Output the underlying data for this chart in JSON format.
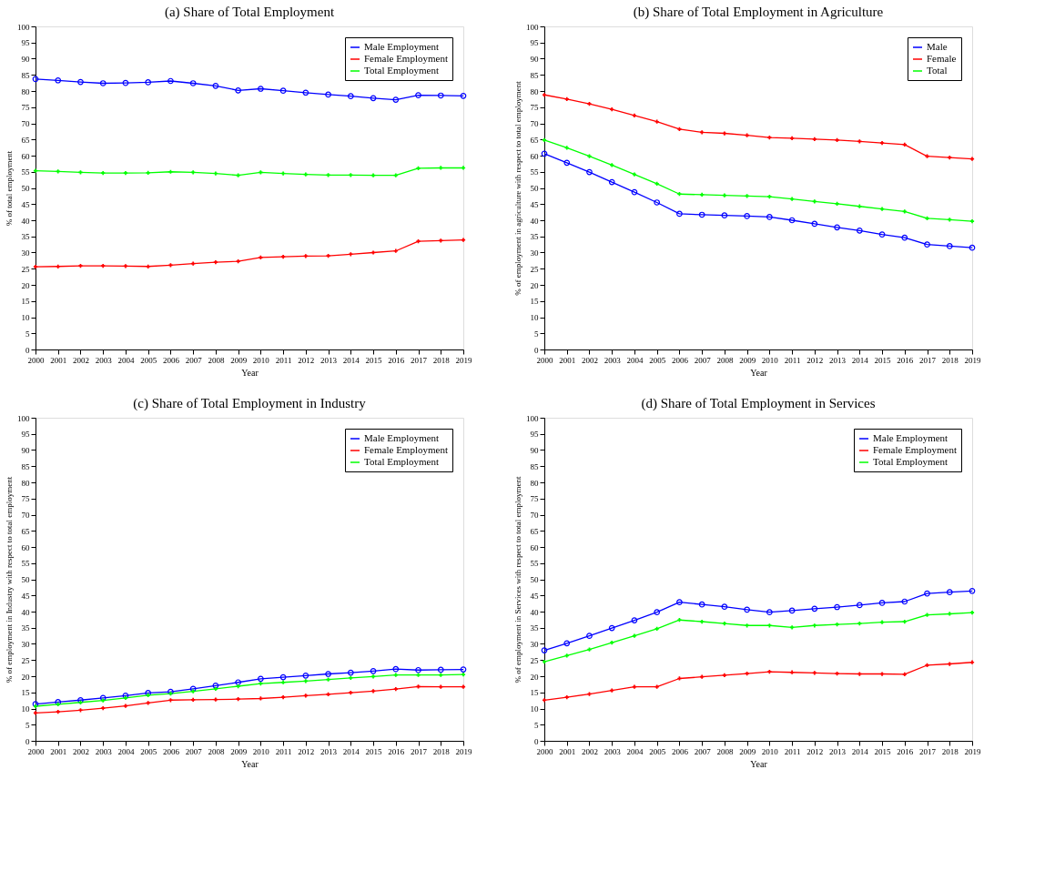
{
  "chart_data": [
    {
      "type": "line",
      "title": "(a) Share of Total Employment",
      "xlabel": "Year",
      "ylabel": "% of total employment",
      "x": [
        2000,
        2001,
        2002,
        2003,
        2004,
        2005,
        2006,
        2007,
        2008,
        2009,
        2010,
        2011,
        2012,
        2013,
        2014,
        2015,
        2016,
        2017,
        2018,
        2019
      ],
      "xlim": [
        2000,
        2019
      ],
      "xticks": [
        2000,
        2001,
        2002,
        2003,
        2004,
        2005,
        2006,
        2007,
        2008,
        2009,
        2010,
        2011,
        2012,
        2013,
        2014,
        2015,
        2016,
        2017,
        2018,
        2019
      ],
      "ylim": [
        0,
        100
      ],
      "yticks": [
        0,
        5,
        10,
        15,
        20,
        25,
        30,
        35,
        40,
        45,
        50,
        55,
        60,
        65,
        70,
        75,
        80,
        85,
        90,
        95,
        100
      ],
      "grid": false,
      "legend": "top right",
      "line_style": "solid",
      "series": [
        {
          "name": "Male Employment",
          "color": "#0000ff",
          "marker": "circle",
          "values": [
            83.7,
            83.3,
            82.8,
            82.4,
            82.5,
            82.7,
            83.1,
            82.4,
            81.6,
            80.2,
            80.7,
            80.1,
            79.5,
            78.9,
            78.4,
            77.8,
            77.3,
            78.7,
            78.6,
            78.5
          ]
        },
        {
          "name": "Female Employment",
          "color": "#ff0000",
          "marker": "cross",
          "values": [
            25.6,
            25.7,
            25.9,
            25.9,
            25.8,
            25.7,
            26.1,
            26.6,
            27.0,
            27.3,
            28.5,
            28.7,
            28.9,
            29.0,
            29.5,
            30.0,
            30.5,
            33.5,
            33.7,
            33.9
          ]
        },
        {
          "name": "Total Employment",
          "color": "#00ff00",
          "marker": "cross",
          "values": [
            55.3,
            55.1,
            54.8,
            54.6,
            54.6,
            54.7,
            55.0,
            54.8,
            54.5,
            53.9,
            54.8,
            54.5,
            54.2,
            54.0,
            54.0,
            53.9,
            53.9,
            56.1,
            56.2,
            56.2
          ]
        }
      ]
    },
    {
      "type": "line",
      "title": "(b) Share of Total Employment in Agriculture",
      "xlabel": "Year",
      "ylabel": "% of employment in agriculture with respect to total employment",
      "x": [
        2000,
        2001,
        2002,
        2003,
        2004,
        2005,
        2006,
        2007,
        2008,
        2009,
        2010,
        2011,
        2012,
        2013,
        2014,
        2015,
        2016,
        2017,
        2018,
        2019
      ],
      "xlim": [
        2000,
        2019
      ],
      "xticks": [
        2000,
        2001,
        2002,
        2003,
        2004,
        2005,
        2006,
        2007,
        2008,
        2009,
        2010,
        2011,
        2012,
        2013,
        2014,
        2015,
        2016,
        2017,
        2018,
        2019
      ],
      "ylim": [
        0,
        100
      ],
      "yticks": [
        0,
        5,
        10,
        15,
        20,
        25,
        30,
        35,
        40,
        45,
        50,
        55,
        60,
        65,
        70,
        75,
        80,
        85,
        90,
        95,
        100
      ],
      "grid": false,
      "legend": "top right",
      "line_style": "solid",
      "series": [
        {
          "name": "Male",
          "color": "#0000ff",
          "marker": "circle",
          "values": [
            60.6,
            57.8,
            54.9,
            51.8,
            48.7,
            45.5,
            42.0,
            41.7,
            41.5,
            41.3,
            41.0,
            40.0,
            38.9,
            37.8,
            36.8,
            35.6,
            34.6,
            32.5,
            32.0,
            31.5
          ]
        },
        {
          "name": "Female",
          "color": "#ff0000",
          "marker": "cross",
          "values": [
            78.8,
            77.5,
            76.0,
            74.3,
            72.4,
            70.5,
            68.2,
            67.2,
            66.9,
            66.3,
            65.6,
            65.4,
            65.1,
            64.8,
            64.4,
            63.9,
            63.4,
            59.8,
            59.4,
            59.0
          ]
        },
        {
          "name": "Total",
          "color": "#00ff00",
          "marker": "cross",
          "values": [
            64.8,
            62.4,
            59.8,
            57.1,
            54.2,
            51.3,
            48.1,
            47.9,
            47.7,
            47.5,
            47.3,
            46.6,
            45.8,
            45.1,
            44.3,
            43.5,
            42.7,
            40.6,
            40.2,
            39.7
          ]
        }
      ]
    },
    {
      "type": "line",
      "title": "(c) Share of Total Employment in Industry",
      "xlabel": "Year",
      "ylabel": "% of employment in Industry with respect to total employment",
      "x": [
        2000,
        2001,
        2002,
        2003,
        2004,
        2005,
        2006,
        2007,
        2008,
        2009,
        2010,
        2011,
        2012,
        2013,
        2014,
        2015,
        2016,
        2017,
        2018,
        2019
      ],
      "xlim": [
        2000,
        2019
      ],
      "xticks": [
        2000,
        2001,
        2002,
        2003,
        2004,
        2005,
        2006,
        2007,
        2008,
        2009,
        2010,
        2011,
        2012,
        2013,
        2014,
        2015,
        2016,
        2017,
        2018,
        2019
      ],
      "ylim": [
        0,
        100
      ],
      "yticks": [
        0,
        5,
        10,
        15,
        20,
        25,
        30,
        35,
        40,
        45,
        50,
        55,
        60,
        65,
        70,
        75,
        80,
        85,
        90,
        95,
        100
      ],
      "grid": false,
      "legend": "top right",
      "line_style": "solid",
      "series": [
        {
          "name": "Male Employment",
          "color": "#0000ff",
          "marker": "circle",
          "values": [
            11.4,
            12.0,
            12.6,
            13.3,
            14.0,
            14.8,
            15.2,
            16.1,
            17.1,
            18.1,
            19.2,
            19.7,
            20.2,
            20.7,
            21.1,
            21.6,
            22.2,
            21.9,
            22.0,
            22.1
          ]
        },
        {
          "name": "Female Employment",
          "color": "#ff0000",
          "marker": "cross",
          "values": [
            8.6,
            9.0,
            9.5,
            10.1,
            10.8,
            11.7,
            12.6,
            12.7,
            12.8,
            12.9,
            13.1,
            13.5,
            14.0,
            14.4,
            14.9,
            15.4,
            16.0,
            16.8,
            16.7,
            16.7
          ]
        },
        {
          "name": "Total Employment",
          "color": "#00ff00",
          "marker": "cross",
          "values": [
            10.7,
            11.3,
            11.9,
            12.5,
            13.3,
            14.1,
            14.6,
            15.3,
            16.1,
            16.9,
            17.7,
            18.1,
            18.5,
            19.0,
            19.5,
            19.9,
            20.4,
            20.4,
            20.4,
            20.5
          ]
        }
      ]
    },
    {
      "type": "line",
      "title": "(d) Share of Total Employment in Services",
      "xlabel": "Year",
      "ylabel": "% of employment in Services with respect to total employment",
      "x": [
        2000,
        2001,
        2002,
        2003,
        2004,
        2005,
        2006,
        2007,
        2008,
        2009,
        2010,
        2011,
        2012,
        2013,
        2014,
        2015,
        2016,
        2017,
        2018,
        2019
      ],
      "xlim": [
        2000,
        2019
      ],
      "xticks": [
        2000,
        2001,
        2002,
        2003,
        2004,
        2005,
        2006,
        2007,
        2008,
        2009,
        2010,
        2011,
        2012,
        2013,
        2014,
        2015,
        2016,
        2017,
        2018,
        2019
      ],
      "ylim": [
        0,
        100
      ],
      "yticks": [
        0,
        5,
        10,
        15,
        20,
        25,
        30,
        35,
        40,
        45,
        50,
        55,
        60,
        65,
        70,
        75,
        80,
        85,
        90,
        95,
        100
      ],
      "grid": false,
      "legend": "top right",
      "line_style": "solid",
      "series": [
        {
          "name": "Male Employment",
          "color": "#0000ff",
          "marker": "circle",
          "values": [
            28.0,
            30.2,
            32.5,
            34.9,
            37.3,
            39.8,
            42.9,
            42.2,
            41.5,
            40.6,
            39.8,
            40.3,
            40.9,
            41.4,
            42.0,
            42.7,
            43.1,
            45.6,
            46.0,
            46.4
          ]
        },
        {
          "name": "Female Employment",
          "color": "#ff0000",
          "marker": "cross",
          "values": [
            12.6,
            13.5,
            14.5,
            15.6,
            16.7,
            16.7,
            19.3,
            19.8,
            20.3,
            20.8,
            21.4,
            21.2,
            21.0,
            20.8,
            20.7,
            20.7,
            20.6,
            23.4,
            23.8,
            24.3
          ]
        },
        {
          "name": "Total Employment",
          "color": "#00ff00",
          "marker": "cross",
          "values": [
            24.5,
            26.4,
            28.3,
            30.4,
            32.5,
            34.7,
            37.4,
            36.9,
            36.3,
            35.7,
            35.7,
            35.1,
            35.7,
            36.0,
            36.3,
            36.7,
            36.9,
            39.0,
            39.3,
            39.7
          ]
        }
      ]
    }
  ]
}
